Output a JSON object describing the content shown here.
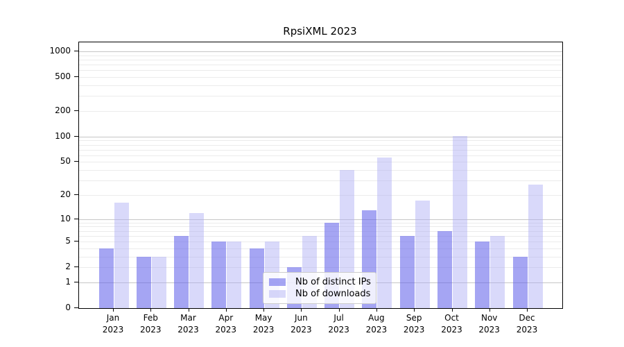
{
  "chart_data": {
    "type": "bar",
    "title": "RpsiXML 2023",
    "categories": [
      "Jan",
      "Feb",
      "Mar",
      "Apr",
      "May",
      "Jun",
      "Jul",
      "Aug",
      "Sep",
      "Oct",
      "Nov",
      "Dec"
    ],
    "year_label": "2023",
    "series": [
      {
        "name": "Nb of distinct IPs",
        "color": "rgba(100,100,235,0.58)",
        "values": [
          4,
          3,
          6,
          5,
          4,
          2,
          9,
          13,
          6,
          7,
          5,
          3
        ]
      },
      {
        "name": "Nb of downloads",
        "color": "rgba(170,170,245,0.45)",
        "values": [
          16,
          3,
          12,
          5,
          5,
          6,
          40,
          57,
          17,
          101,
          6,
          27
        ]
      }
    ],
    "y_ticks": [
      0,
      1,
      2,
      5,
      10,
      20,
      50,
      100,
      200,
      500,
      1000
    ],
    "scale": "log1p",
    "ylim": [
      0,
      1276
    ],
    "grid": true,
    "legend_position": "bottom-center",
    "colors": {
      "grid_major": "#c6c6c6",
      "grid_minor": "#ebebeb",
      "spine": "#000000",
      "background": "#ffffff"
    }
  }
}
